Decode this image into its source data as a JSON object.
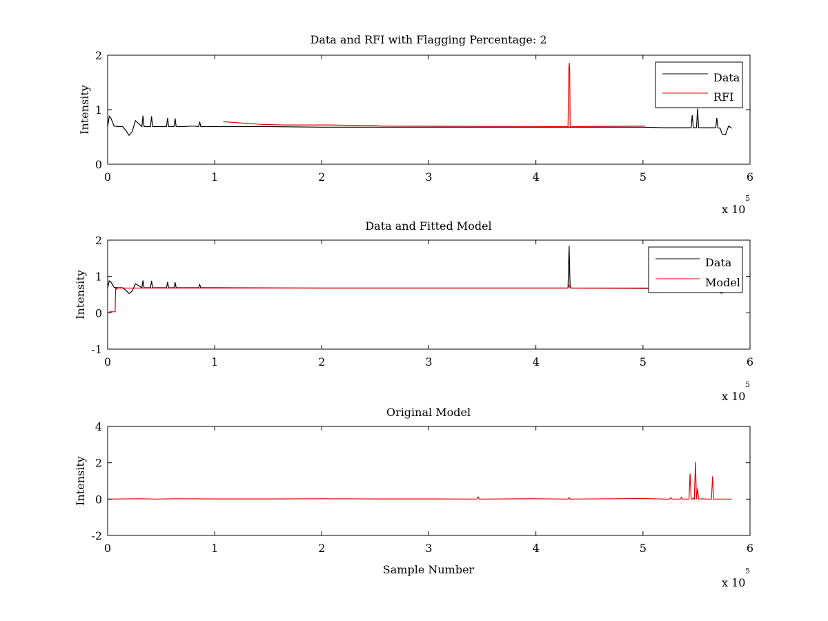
{
  "chart_data": [
    {
      "type": "line",
      "title": "Data and RFI with Flagging Percentage: 2",
      "xlabel": "",
      "ylabel": "Intensity",
      "xlim": [
        0,
        600000
      ],
      "ylim": [
        0,
        2
      ],
      "x_ticks": [
        0,
        1,
        2,
        3,
        4,
        5,
        6
      ],
      "y_ticks": [
        0,
        1,
        2
      ],
      "x_exponent": {
        "base": "x 10",
        "power": "5"
      },
      "legend": {
        "position": "top-right",
        "entries": [
          "Data",
          "RFI"
        ]
      },
      "grid": false,
      "series": [
        {
          "name": "Data",
          "color": "#000000",
          "x": [
            0,
            1500,
            3000,
            6000,
            10000,
            14000,
            17000,
            20000,
            23000,
            26000,
            32000,
            33000,
            34000,
            40000,
            41000,
            42000,
            55000,
            56000,
            57000,
            62000,
            63000,
            64000,
            70000,
            80000,
            85000,
            86000,
            87000,
            100000,
            150000,
            200000,
            250000,
            300000,
            350000,
            400000,
            420000,
            440000,
            460000,
            480000,
            500000,
            520000,
            545000,
            546000,
            547000,
            550000,
            551000,
            552000,
            560000,
            568000,
            569000,
            570000,
            572000,
            574000,
            577000,
            580000,
            583000
          ],
          "y": [
            0.68,
            0.88,
            0.85,
            0.7,
            0.69,
            0.69,
            0.62,
            0.53,
            0.6,
            0.8,
            0.69,
            0.89,
            0.69,
            0.69,
            0.88,
            0.69,
            0.69,
            0.85,
            0.69,
            0.69,
            0.84,
            0.69,
            0.69,
            0.7,
            0.69,
            0.78,
            0.69,
            0.69,
            0.69,
            0.68,
            0.68,
            0.68,
            0.68,
            0.68,
            0.68,
            0.68,
            0.68,
            0.68,
            0.68,
            0.67,
            0.67,
            0.9,
            0.67,
            0.67,
            1.02,
            0.67,
            0.67,
            0.67,
            0.85,
            0.67,
            0.66,
            0.55,
            0.54,
            0.7,
            0.66
          ]
        },
        {
          "name": "RFI",
          "color": "#e00000",
          "x": [
            108000,
            144000,
            165000,
            200000,
            208000,
            235000,
            250000,
            255000,
            430000,
            430800,
            431200,
            431600,
            432000,
            432500,
            502000
          ],
          "y": [
            0.78,
            0.73,
            0.72,
            0.72,
            0.72,
            0.71,
            0.71,
            0.7,
            0.69,
            1.78,
            1.86,
            1.7,
            0.69,
            0.69,
            0.7
          ]
        }
      ]
    },
    {
      "type": "line",
      "title": "Data and Fitted Model",
      "xlabel": "",
      "ylabel": "Intensity",
      "xlim": [
        0,
        600000
      ],
      "ylim": [
        -1,
        2
      ],
      "x_ticks": [
        0,
        1,
        2,
        3,
        4,
        5,
        6
      ],
      "y_ticks": [
        -1,
        0,
        1,
        2
      ],
      "x_exponent": {
        "base": "x 10",
        "power": "5"
      },
      "legend": {
        "position": "top-right",
        "entries": [
          "Data",
          "Model"
        ]
      },
      "grid": false,
      "series": [
        {
          "name": "Data",
          "color": "#000000",
          "x": [
            0,
            1500,
            3000,
            6000,
            10000,
            14000,
            17000,
            20000,
            23000,
            26000,
            32000,
            33000,
            34000,
            40000,
            41000,
            42000,
            55000,
            56000,
            57000,
            62000,
            63000,
            64000,
            85000,
            86000,
            87000,
            100000,
            200000,
            300000,
            400000,
            430000,
            431000,
            432000,
            433000,
            500000,
            545000,
            570000,
            572000,
            574000,
            577000,
            580000,
            583000
          ],
          "y": [
            0.68,
            0.88,
            0.85,
            0.7,
            0.69,
            0.69,
            0.62,
            0.53,
            0.6,
            0.8,
            0.69,
            0.89,
            0.69,
            0.69,
            0.88,
            0.69,
            0.69,
            0.85,
            0.69,
            0.69,
            0.84,
            0.69,
            0.69,
            0.78,
            0.69,
            0.69,
            0.68,
            0.68,
            0.68,
            0.68,
            1.85,
            0.69,
            0.68,
            0.68,
            0.67,
            0.66,
            0.55,
            0.54,
            0.7,
            0.66,
            0.66
          ]
        },
        {
          "name": "Model",
          "color": "#e00000",
          "x": [
            0,
            2000,
            2000,
            7000,
            7500,
            8000,
            9000,
            100000,
            200000,
            300000,
            400000,
            430000,
            431500,
            433000,
            500000,
            540000
          ],
          "y": [
            0.0,
            0.0,
            0.03,
            0.03,
            0.7,
            0.64,
            0.68,
            0.68,
            0.68,
            0.68,
            0.68,
            0.68,
            0.77,
            0.68,
            0.67,
            0.67
          ]
        }
      ]
    },
    {
      "type": "line",
      "title": "Original Model",
      "xlabel": "Sample Number",
      "ylabel": "Intensity",
      "xlim": [
        0,
        600000
      ],
      "ylim": [
        -2,
        4
      ],
      "x_ticks": [
        0,
        1,
        2,
        3,
        4,
        5,
        6
      ],
      "y_ticks": [
        -2,
        0,
        2,
        4
      ],
      "x_exponent": {
        "base": "x 10",
        "power": "5"
      },
      "legend": null,
      "grid": false,
      "series": [
        {
          "color": "#e00000",
          "x": [
            0,
            30000,
            45000,
            65000,
            100000,
            150000,
            200000,
            250000,
            300000,
            345000,
            346000,
            347000,
            400000,
            430000,
            431000,
            432000,
            500000,
            520000,
            525000,
            526000,
            527000,
            535000,
            536000,
            537000,
            540000,
            543000,
            544000,
            545000,
            546000,
            547000,
            548000,
            549000,
            550000,
            551000,
            552000,
            553000,
            556000,
            560000,
            564000,
            565000,
            566000,
            567000,
            568000,
            575000,
            583000
          ],
          "y": [
            0.0,
            0.02,
            0.0,
            0.02,
            0.01,
            0.01,
            0.02,
            0.01,
            0.01,
            0.0,
            0.12,
            0.0,
            0.02,
            0.0,
            0.08,
            0.0,
            0.03,
            0.0,
            0.0,
            0.08,
            0.0,
            0.0,
            0.1,
            0.0,
            0.0,
            0.0,
            1.4,
            0.0,
            0.0,
            0.05,
            0.0,
            2.05,
            0.0,
            0.6,
            0.0,
            0.0,
            0.02,
            0.0,
            0.0,
            1.25,
            0.0,
            0.0,
            0.0,
            0.0,
            0.0
          ]
        }
      ]
    }
  ]
}
